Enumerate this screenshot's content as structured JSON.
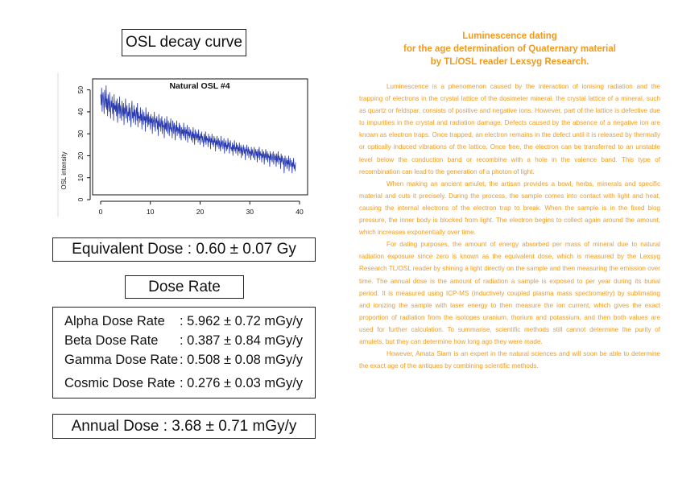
{
  "osl_title": "OSL decay curve",
  "chart_data": {
    "type": "line",
    "title": "Natural OSL #4",
    "xlabel": "",
    "ylabel": "OSL intensity",
    "xlim": [
      0,
      40
    ],
    "ylim": [
      0,
      55
    ],
    "xticks": [
      "0",
      "10",
      "20",
      "30",
      "40"
    ],
    "yticks": [
      "0",
      "10",
      "20",
      "30",
      "40",
      "50"
    ],
    "series": [
      {
        "x_start": 0,
        "x_step": 0.1,
        "color": "#2a3bb0",
        "values": [
          48,
          43,
          51,
          40,
          47,
          49,
          44,
          39,
          50,
          45,
          42,
          52,
          41,
          46,
          38,
          48,
          44,
          40,
          49,
          43,
          37,
          45,
          42,
          47,
          39,
          44,
          36,
          48,
          41,
          43,
          40,
          45,
          38,
          46,
          35,
          42,
          44,
          39,
          47,
          37,
          43,
          40,
          36,
          45,
          41,
          38,
          44,
          34,
          42,
          39,
          46,
          37,
          41,
          43,
          35,
          40,
          38,
          44,
          36,
          42,
          39,
          33,
          41,
          45,
          37,
          40,
          35,
          43,
          38,
          41,
          34,
          39,
          42,
          36,
          44,
          33,
          40,
          37,
          38,
          35,
          42,
          36,
          39,
          32,
          41,
          37,
          34,
          40,
          36,
          38,
          31,
          42,
          35,
          37,
          39,
          33,
          40,
          34,
          36,
          38,
          32,
          39,
          35,
          37,
          30,
          38,
          36,
          33,
          40,
          34,
          31,
          37,
          35,
          38,
          32,
          36,
          29,
          39,
          34,
          33,
          37,
          31,
          35,
          38,
          30,
          36,
          33,
          34,
          28,
          37,
          32,
          35,
          31,
          38,
          33,
          30,
          36,
          34,
          29,
          35,
          32,
          37,
          31,
          33,
          28,
          36,
          34,
          30,
          35,
          32,
          27,
          34,
          31,
          36,
          29,
          33,
          32,
          30,
          35,
          28,
          34,
          31,
          27,
          33,
          30,
          32,
          29,
          35,
          28,
          31,
          33,
          27,
          32,
          30,
          34,
          26,
          31,
          29,
          33,
          28,
          30,
          32,
          27,
          29,
          31,
          26,
          33,
          28,
          30,
          25,
          32,
          29,
          27,
          31,
          28,
          30,
          26,
          32,
          27,
          29,
          25,
          30,
          28,
          31,
          26,
          29,
          27,
          24,
          30,
          28,
          26,
          31,
          25,
          29,
          27,
          28,
          24,
          30,
          26,
          27,
          29,
          23,
          28,
          26,
          30,
          25,
          27,
          24,
          29,
          26,
          28,
          22,
          27,
          25,
          29,
          24,
          26,
          28,
          23,
          27,
          25,
          22,
          29,
          24,
          26,
          27,
          23,
          25,
          28,
          21,
          26,
          24,
          27,
          22,
          25,
          23,
          28,
          24,
          26,
          21,
          25,
          27,
          23,
          24,
          22,
          26,
          20,
          25,
          23,
          27,
          22,
          24,
          21,
          26,
          23,
          25,
          20,
          24,
          22,
          26,
          21,
          23,
          25,
          19,
          24,
          22,
          20,
          25,
          23,
          21,
          24,
          18,
          23,
          22,
          25,
          20,
          22,
          24,
          19,
          23,
          21,
          22,
          18,
          24,
          20,
          23,
          21,
          19,
          22,
          24,
          18,
          21,
          23,
          20,
          22,
          17,
          23,
          19,
          21,
          24,
          18,
          22,
          20,
          21,
          17,
          23,
          19,
          20,
          22,
          16,
          21,
          19,
          23,
          18,
          20,
          22,
          17,
          21,
          19,
          20,
          15,
          22,
          18,
          21,
          19,
          17,
          20,
          22,
          16,
          19,
          21,
          18,
          20,
          15,
          21,
          17,
          19,
          22,
          16,
          20,
          18,
          19,
          14,
          21,
          17,
          20,
          18,
          16,
          19,
          12,
          18,
          20,
          15,
          17,
          19,
          14,
          18,
          16,
          20,
          13,
          17,
          19,
          15,
          16,
          18,
          12,
          17,
          15,
          19,
          14,
          16,
          13,
          17
        ]
      }
    ]
  },
  "equivalent_dose": "Equivalent Dose : 0.60 ± 0.07 Gy",
  "dose_rate_title": "Dose Rate",
  "dose_rates": [
    {
      "label": "Alpha Dose Rate",
      "value": ": 5.962 ± 0.72 mGy/y"
    },
    {
      "label": "Beta Dose Rate",
      "value": ": 0.387 ± 0.84 mGy/y"
    },
    {
      "label": "Gamma Dose Rate",
      "value": ": 0.508 ± 0.08 mGy/y"
    },
    {
      "label": "Cosmic Dose Rate",
      "value": ": 0.276 ± 0.03 mGy/y"
    }
  ],
  "annual_dose": "Annual Dose : 3.68 ± 0.71 mGy/y",
  "text_color": "#f29a1c",
  "right_title": {
    "line1": "Luminescence dating",
    "line2": "for the age determination of Quaternary material",
    "line3": "by TL/OSL reader Lexsyg Research."
  },
  "paragraphs": [
    "Luminescence is a phenomenon caused by the interaction of ionising radiation and the trapping of electrons in the crystal lattice of the dosimeter mineral. the crystal lattice of a mineral, such as quartz or feldspar, consists of positive and negative ions. However, part of the lattice is defective due to impurities in the crystal and radiation damage. Defects caused by the absence of a negative ion are known as electron traps. Once trapped, an electron remains in the defect until it is released by thermally or optically induced vibrations of the lattice. Once free, the electron can be transferred to an unstable level below the conduction band or recombine with a hole in the valence band. This type of recombination can lead to the generation of a photon of light.",
    "When making an ancient amulet, the artisan provides a bowl, herbs, minerals and specific material and cuts it precisely. During the process, the sample comes into contact with light and heat, causing the internal electrons of the electron trap to break. When the sample is in the fixed blog pressure, the inner body is blocked from light. The electron begins to collect again around the amount, which increases exponentially over time.",
    "For dating purposes, the amount of energy absorbed per mass of mineral due to natural radiation exposure since zero is known as the equivalent dose, which is measured by the Lexsyg Research TL/OSL reader by shining a light directly on the sample and then measuring the emission over time. The annual dose is the amount of radiation a sample is exposed to per year during its burial period. It is measured using ICP-MS (inductively coupled plasma mass spectrometry) by sublimating and ionizing the sample with laser energy to then measure the ion current, which gives the exact proportion of radiation from the isotopes uranium, thorium and potassium, and then both values are used for further calculation. To summarise, scientific methods still cannot determine the purity of amulets, but they can determine how long ago they were made.",
    "However, Amata Siam is an expert in the natural sciences and will soon be able to determine the exact age of the antiques by combining scientific methods."
  ]
}
